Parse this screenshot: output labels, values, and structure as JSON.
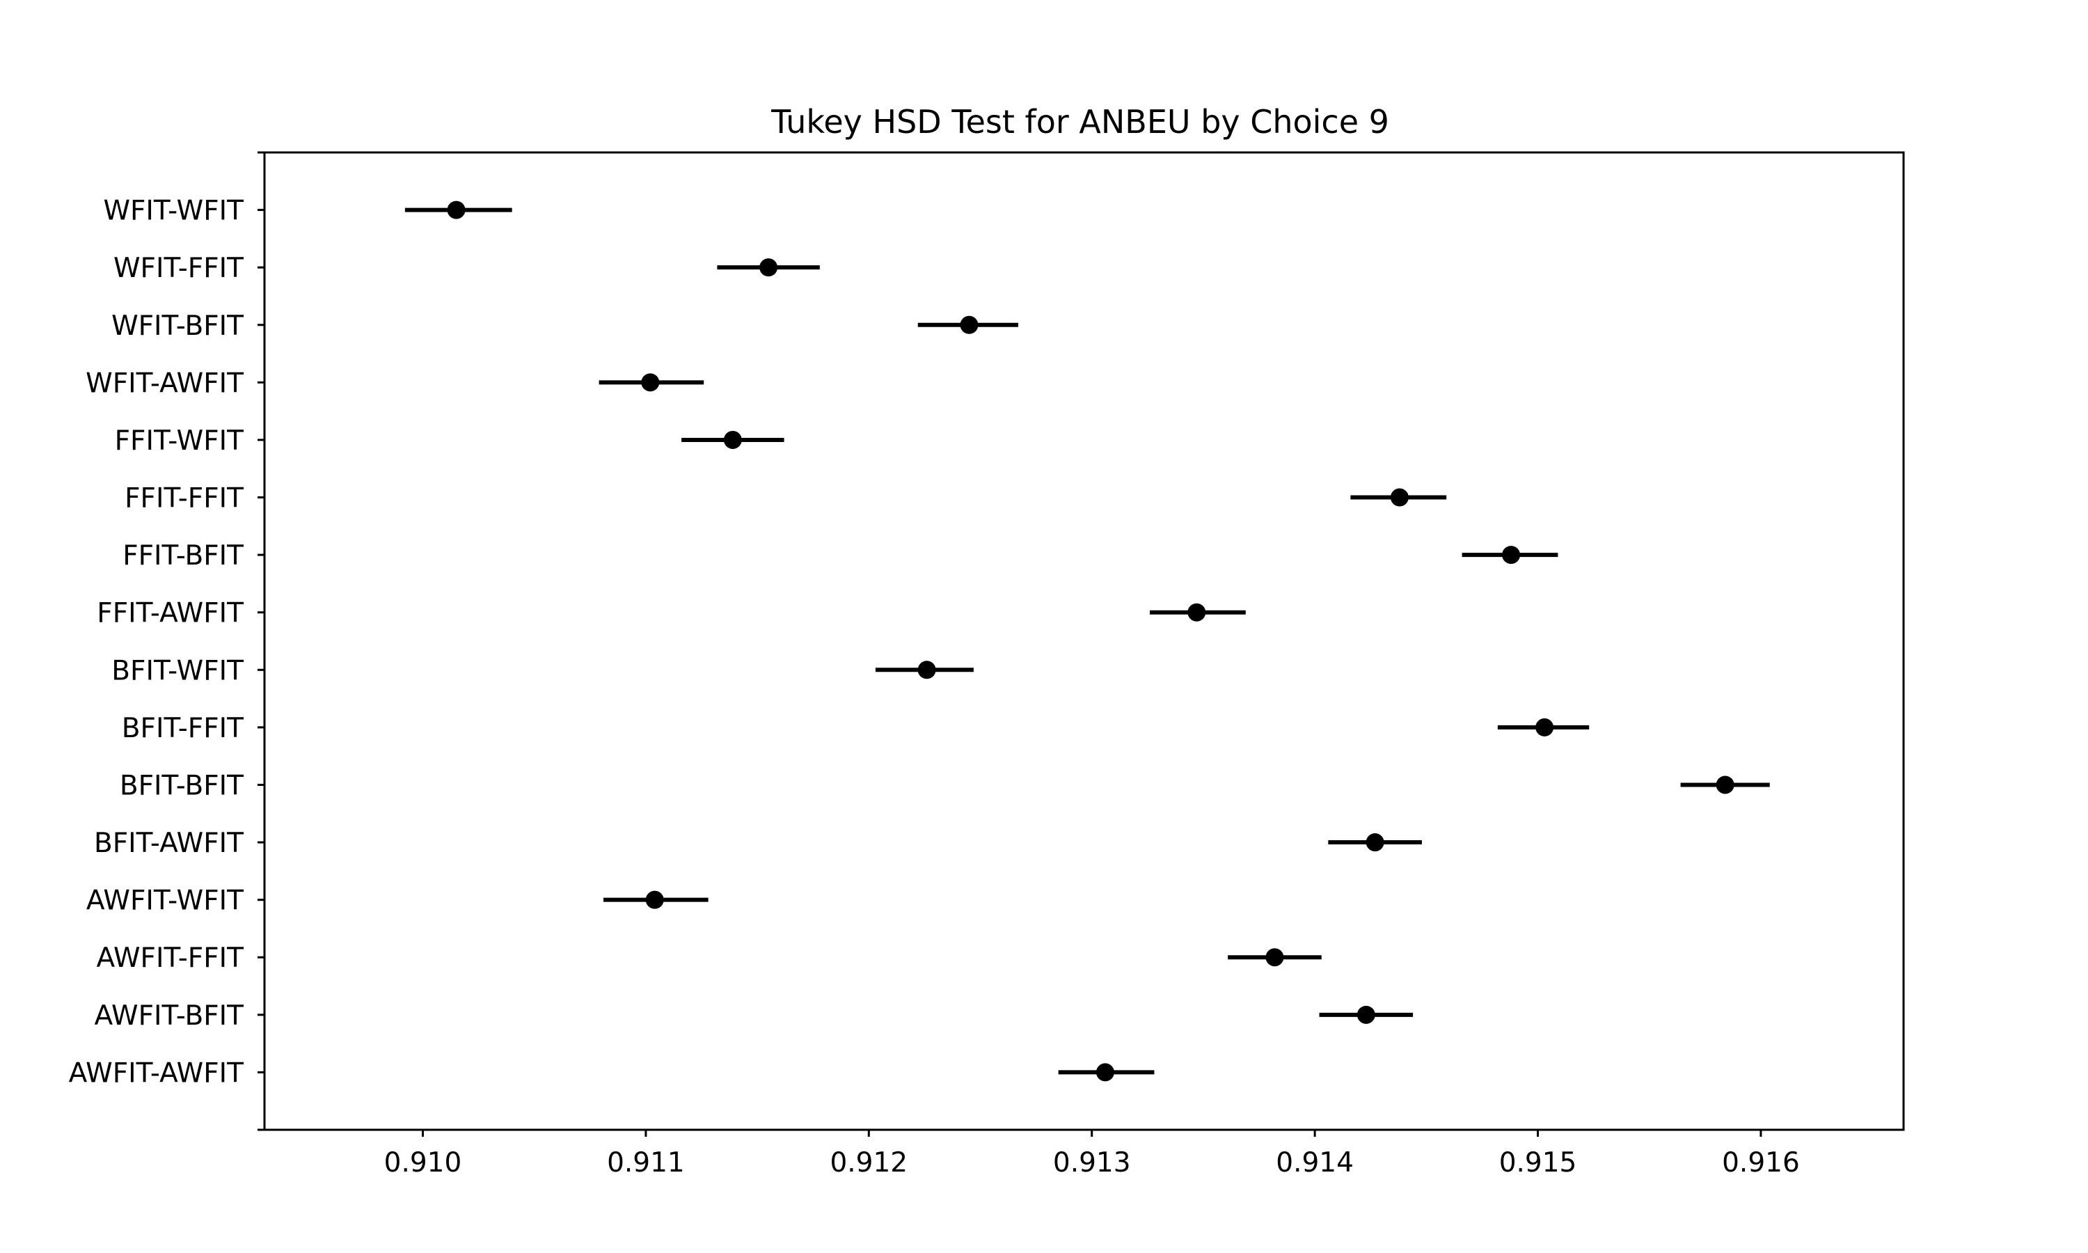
{
  "chart_data": {
    "type": "scatter",
    "subtype": "tukey-hsd-interval-plot",
    "title": "Tukey HSD Test for ANBEU by Choice 9",
    "xlabel": "",
    "ylabel": "",
    "xlim": [
      0.90929,
      0.91664
    ],
    "x_ticks": [
      "0.910",
      "0.911",
      "0.912",
      "0.913",
      "0.914",
      "0.915",
      "0.916"
    ],
    "grid": false,
    "colors": {
      "marker": "#000000",
      "line": "#000000",
      "axes": "#000000",
      "background": "#ffffff"
    },
    "categories": [
      "WFIT-WFIT",
      "WFIT-FFIT",
      "WFIT-BFIT",
      "WFIT-AWFIT",
      "FFIT-WFIT",
      "FFIT-FFIT",
      "FFIT-BFIT",
      "FFIT-AWFIT",
      "BFIT-WFIT",
      "BFIT-FFIT",
      "BFIT-BFIT",
      "BFIT-AWFIT",
      "AWFIT-WFIT",
      "AWFIT-FFIT",
      "AWFIT-BFIT",
      "AWFIT-AWFIT"
    ],
    "means": [
      0.91015,
      0.91155,
      0.91245,
      0.91102,
      0.91139,
      0.91438,
      0.91488,
      0.91347,
      0.91226,
      0.91503,
      0.91584,
      0.91427,
      0.91104,
      0.91382,
      0.91423,
      0.91306
    ],
    "lower": [
      0.90992,
      0.91132,
      0.91222,
      0.91079,
      0.91116,
      0.91416,
      0.91466,
      0.91326,
      0.91203,
      0.91482,
      0.91564,
      0.91406,
      0.91081,
      0.91361,
      0.91402,
      0.91285
    ],
    "upper": [
      0.9104,
      0.91178,
      0.91267,
      0.91126,
      0.91162,
      0.91459,
      0.91509,
      0.91369,
      0.91247,
      0.91523,
      0.91604,
      0.91448,
      0.91128,
      0.91403,
      0.91444,
      0.91328
    ]
  }
}
